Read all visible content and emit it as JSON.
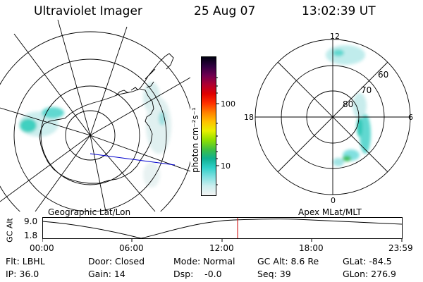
{
  "header": {
    "title": "Ultraviolet Imager",
    "date": "25 Aug 07",
    "time": "13:02:39 UT"
  },
  "geo_map": {
    "label": "Geographic Lat/Lon"
  },
  "mag_map": {
    "label": "Apex MLat/MLT",
    "mlt_labels": [
      "12",
      "18",
      "6",
      "0"
    ],
    "lat_labels": [
      "60",
      "70",
      "80"
    ]
  },
  "colorbar": {
    "unit": "photon cm⁻²s⁻¹",
    "ticks": [
      "100",
      "10"
    ],
    "colors": [
      "#f4f4f4",
      "#ccefef",
      "#80e0e0",
      "#30d0c8",
      "#10b090",
      "#40c040",
      "#90e000",
      "#e8f000",
      "#ffc000",
      "#ff8000",
      "#ff3000",
      "#e00000",
      "#b00030",
      "#700050",
      "#300040",
      "#000010"
    ]
  },
  "orbit": {
    "ylabel": "GC Alt",
    "y_ticks": [
      "9.0",
      "1.8"
    ],
    "x_ticks": [
      "00:00",
      "06:00",
      "12:00",
      "18:00",
      "23:59"
    ],
    "current_time_marker": "13:02",
    "marker_color": "#cc0000"
  },
  "status": {
    "flt": "Flt: LBHL",
    "ip": "IP: 36.0",
    "door": "Door: Closed",
    "gain": "Gain: 14",
    "mode": "Mode: Normal",
    "dsp": "Dsp:    -0.0",
    "gc_alt": "GC Alt: 8.6 Re",
    "seq": "Seq: 39",
    "glat": "GLat: -84.5",
    "glon": "GLon: 276.9"
  }
}
